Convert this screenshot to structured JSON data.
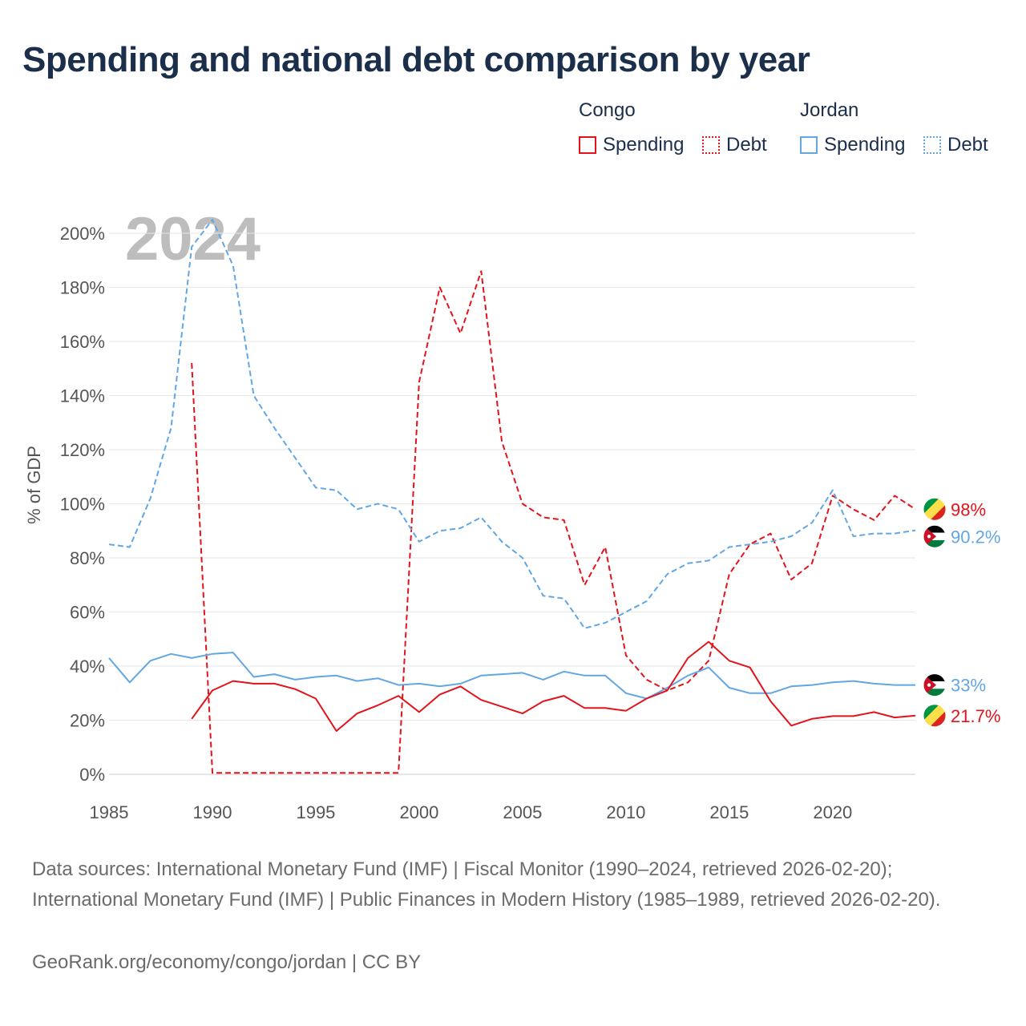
{
  "title": "Spending and national debt comparison by year",
  "legend": {
    "groups": [
      {
        "name": "Congo",
        "items": [
          {
            "label": "Spending",
            "color": "#e3131b",
            "style": "solid"
          },
          {
            "label": "Debt",
            "color": "#e3131b",
            "style": "dotted"
          }
        ]
      },
      {
        "name": "Jordan",
        "items": [
          {
            "label": "Spending",
            "color": "#62a6e2",
            "style": "solid"
          },
          {
            "label": "Debt",
            "color": "#62a6e2",
            "style": "dotted"
          }
        ]
      }
    ]
  },
  "footer": {
    "source": "Data sources: International Monetary Fund (IMF) | Fiscal Monitor (1990–2024, retrieved 2026-02-20); International Monetary Fund (IMF) | Public Finances in Modern History (1985–1989, retrieved 2026-02-20).",
    "attribution": "GeoRank.org/economy/congo/jordan | CC BY"
  },
  "chart_data": {
    "type": "line",
    "year_watermark": "2024",
    "ylabel": "% of GDP",
    "xlabel": "",
    "xlim": [
      1985,
      2024
    ],
    "ylim": [
      0,
      200
    ],
    "grid": true,
    "x_ticks": [
      1985,
      1990,
      1995,
      2000,
      2005,
      2010,
      2015,
      2020
    ],
    "y_ticks": [
      0,
      20,
      40,
      60,
      80,
      100,
      120,
      140,
      160,
      180,
      200
    ],
    "y_tick_labels": [
      "0%",
      "20%",
      "40%",
      "60%",
      "80%",
      "100%",
      "120%",
      "140%",
      "160%",
      "180%",
      "200%"
    ],
    "series": [
      {
        "name": "Congo Debt",
        "country": "Congo",
        "measure": "Debt",
        "color": "#e3131b",
        "dash": true,
        "end_label": "98%",
        "flag": {
          "colors": [
            "#009543",
            "#fbde4a",
            "#dc241f"
          ],
          "icon": "congo-flag-icon"
        },
        "points": [
          [
            1989,
            152
          ],
          [
            1990,
            0.5
          ],
          [
            1991,
            0.5
          ],
          [
            1992,
            0.5
          ],
          [
            1993,
            0.5
          ],
          [
            1994,
            0.5
          ],
          [
            1995,
            0.5
          ],
          [
            1996,
            0.5
          ],
          [
            1997,
            0.5
          ],
          [
            1998,
            0.5
          ],
          [
            1999,
            0.5
          ],
          [
            2000,
            145
          ],
          [
            2001,
            180
          ],
          [
            2002,
            163
          ],
          [
            2003,
            186
          ],
          [
            2004,
            123
          ],
          [
            2005,
            100
          ],
          [
            2006,
            95
          ],
          [
            2007,
            94
          ],
          [
            2008,
            70
          ],
          [
            2009,
            84
          ],
          [
            2010,
            44
          ],
          [
            2011,
            35
          ],
          [
            2012,
            31
          ],
          [
            2013,
            34
          ],
          [
            2014,
            42
          ],
          [
            2015,
            74
          ],
          [
            2016,
            85
          ],
          [
            2017,
            89
          ],
          [
            2018,
            72
          ],
          [
            2019,
            78
          ],
          [
            2020,
            103
          ],
          [
            2021,
            98
          ],
          [
            2022,
            94
          ],
          [
            2023,
            103
          ],
          [
            2024,
            98
          ]
        ]
      },
      {
        "name": "Jordan Debt",
        "country": "Jordan",
        "measure": "Debt",
        "color": "#62a6e2",
        "dash": true,
        "end_label": "90.2%",
        "flag": {
          "colors": [
            "#000000",
            "#ffffff",
            "#007a3d",
            "#ce1126"
          ],
          "icon": "jordan-flag-icon"
        },
        "points": [
          [
            1985,
            85
          ],
          [
            1986,
            84
          ],
          [
            1987,
            102
          ],
          [
            1988,
            128
          ],
          [
            1989,
            195
          ],
          [
            1990,
            205
          ],
          [
            1991,
            188
          ],
          [
            1992,
            140
          ],
          [
            1993,
            128
          ],
          [
            1994,
            117
          ],
          [
            1995,
            106
          ],
          [
            1996,
            105
          ],
          [
            1997,
            98
          ],
          [
            1998,
            100
          ],
          [
            1999,
            98
          ],
          [
            2000,
            86
          ],
          [
            2001,
            90
          ],
          [
            2002,
            91
          ],
          [
            2003,
            95
          ],
          [
            2004,
            86
          ],
          [
            2005,
            80
          ],
          [
            2006,
            66
          ],
          [
            2007,
            65
          ],
          [
            2008,
            54
          ],
          [
            2009,
            56
          ],
          [
            2010,
            60
          ],
          [
            2011,
            64
          ],
          [
            2012,
            74
          ],
          [
            2013,
            78
          ],
          [
            2014,
            79
          ],
          [
            2015,
            84
          ],
          [
            2016,
            85
          ],
          [
            2017,
            86
          ],
          [
            2018,
            88
          ],
          [
            2019,
            93
          ],
          [
            2020,
            105
          ],
          [
            2021,
            88
          ],
          [
            2022,
            89
          ],
          [
            2023,
            89
          ],
          [
            2024,
            90.2
          ]
        ]
      },
      {
        "name": "Jordan Spending",
        "country": "Jordan",
        "measure": "Spending",
        "color": "#62a6e2",
        "dash": false,
        "end_label": "33%",
        "flag": {
          "colors": [
            "#000000",
            "#ffffff",
            "#007a3d",
            "#ce1126"
          ],
          "icon": "jordan-flag-icon"
        },
        "points": [
          [
            1985,
            43
          ],
          [
            1986,
            34
          ],
          [
            1987,
            42
          ],
          [
            1988,
            44.5
          ],
          [
            1989,
            43
          ],
          [
            1990,
            44.5
          ],
          [
            1991,
            45
          ],
          [
            1992,
            36
          ],
          [
            1993,
            37
          ],
          [
            1994,
            35
          ],
          [
            1995,
            36
          ],
          [
            1996,
            36.5
          ],
          [
            1997,
            34.5
          ],
          [
            1998,
            35.5
          ],
          [
            1999,
            33
          ],
          [
            2000,
            33.5
          ],
          [
            2001,
            32.5
          ],
          [
            2002,
            33.5
          ],
          [
            2003,
            36.5
          ],
          [
            2004,
            37
          ],
          [
            2005,
            37.5
          ],
          [
            2006,
            35
          ],
          [
            2007,
            38
          ],
          [
            2008,
            36.5
          ],
          [
            2009,
            36.5
          ],
          [
            2010,
            30
          ],
          [
            2011,
            28
          ],
          [
            2012,
            32
          ],
          [
            2013,
            36.5
          ],
          [
            2014,
            39.5
          ],
          [
            2015,
            32
          ],
          [
            2016,
            30
          ],
          [
            2017,
            30
          ],
          [
            2018,
            32.5
          ],
          [
            2019,
            33
          ],
          [
            2020,
            34
          ],
          [
            2021,
            34.5
          ],
          [
            2022,
            33.5
          ],
          [
            2023,
            33
          ],
          [
            2024,
            33
          ]
        ]
      },
      {
        "name": "Congo Spending",
        "country": "Congo",
        "measure": "Spending",
        "color": "#e3131b",
        "dash": false,
        "end_label": "21.7%",
        "flag": {
          "colors": [
            "#009543",
            "#fbde4a",
            "#dc241f"
          ],
          "icon": "congo-flag-icon"
        },
        "points": [
          [
            1989,
            20.5
          ],
          [
            1990,
            31
          ],
          [
            1991,
            34.5
          ],
          [
            1992,
            33.5
          ],
          [
            1993,
            33.5
          ],
          [
            1994,
            31.5
          ],
          [
            1995,
            28
          ],
          [
            1996,
            16
          ],
          [
            1997,
            22.5
          ],
          [
            1998,
            25.5
          ],
          [
            1999,
            29
          ],
          [
            2000,
            23
          ],
          [
            2001,
            29.5
          ],
          [
            2002,
            32.5
          ],
          [
            2003,
            27.5
          ],
          [
            2004,
            25
          ],
          [
            2005,
            22.5
          ],
          [
            2006,
            27
          ],
          [
            2007,
            29
          ],
          [
            2008,
            24.5
          ],
          [
            2009,
            24.5
          ],
          [
            2010,
            23.5
          ],
          [
            2011,
            28
          ],
          [
            2012,
            31
          ],
          [
            2013,
            43
          ],
          [
            2014,
            49
          ],
          [
            2015,
            42
          ],
          [
            2016,
            39.5
          ],
          [
            2017,
            27
          ],
          [
            2018,
            18
          ],
          [
            2019,
            20.5
          ],
          [
            2020,
            21.5
          ],
          [
            2021,
            21.5
          ],
          [
            2022,
            23
          ],
          [
            2023,
            21
          ],
          [
            2024,
            21.7
          ]
        ]
      }
    ]
  }
}
